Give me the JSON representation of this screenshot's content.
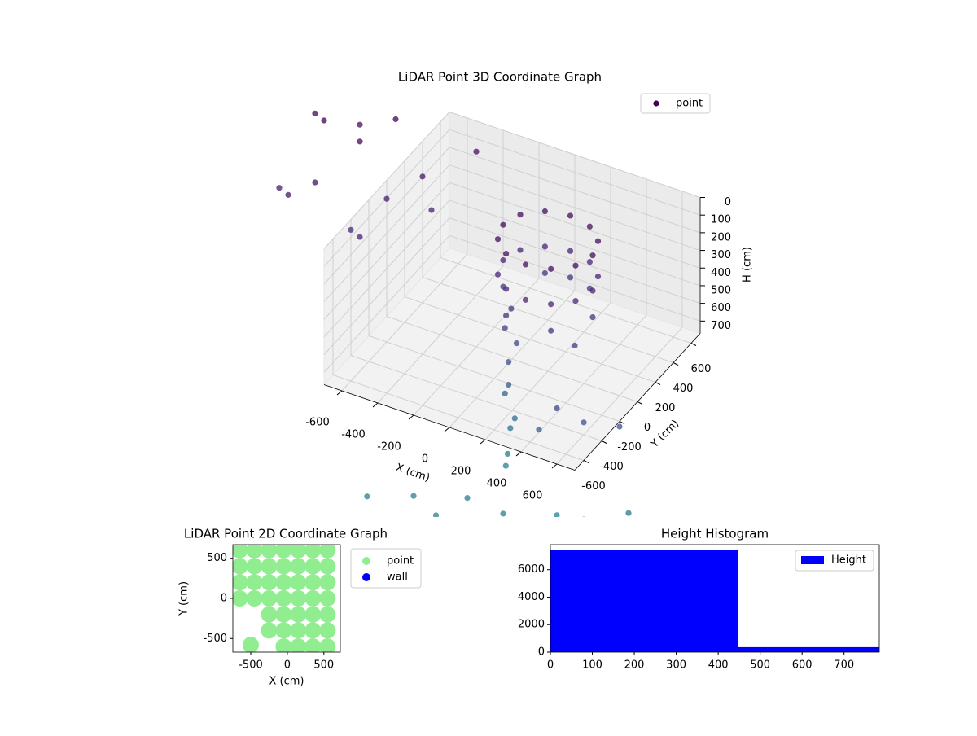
{
  "chart_data": [
    {
      "type": "scatter3d",
      "title": "LiDAR Point 3D Coordinate Graph",
      "xlabel": "X (cm)",
      "ylabel": "Y (cm)",
      "zlabel": "H (cm)",
      "colormap": "viridis",
      "legend": "upper right",
      "z_inverted": true,
      "xlim": [
        -700,
        700
      ],
      "ylim": [
        -700,
        700
      ],
      "zlim": [
        0,
        770
      ],
      "xticks": [
        -600,
        -400,
        -200,
        0,
        200,
        400,
        600
      ],
      "yticks": [
        -600,
        -400,
        -200,
        0,
        200,
        400,
        600
      ],
      "zticks": [
        0,
        100,
        200,
        300,
        400,
        500,
        600,
        700
      ],
      "series": [
        {
          "name": "point",
          "color": "#440154",
          "x": [
            400,
            367,
            275,
            150,
            25,
            -67,
            -100,
            -67,
            25,
            150,
            275,
            367,
            400,
            367,
            275,
            150,
            25,
            -67,
            -100,
            -67,
            25,
            150,
            275,
            367,
            400,
            275,
            150,
            25,
            -100,
            25,
            275,
            20,
            0,
            40,
            10,
            30,
            -20,
            50,
            0,
            20,
            -10,
            -460,
            -250,
            0,
            200,
            400,
            600,
            800,
            -100,
            -1100,
            -1200,
            -1000,
            -900,
            -1100,
            -800,
            -700,
            -600,
            -800,
            -1200,
            -1300,
            -500,
            -900,
            -1300,
            600,
            700,
            500,
            400,
            300
          ],
          "y": [
            100,
            225,
            317,
            350,
            317,
            225,
            100,
            -25,
            -117,
            -150,
            -117,
            -25,
            100,
            225,
            317,
            350,
            317,
            225,
            100,
            -25,
            -117,
            -150,
            -117,
            -25,
            100,
            317,
            350,
            317,
            100,
            -117,
            -117,
            -50,
            -80,
            -30,
            -60,
            -100,
            -40,
            -70,
            -20,
            -90,
            -50,
            -700,
            -600,
            -500,
            -500,
            -300,
            -400,
            -300,
            -650,
            0,
            -100,
            300,
            500,
            500,
            200,
            400,
            300,
            -100,
            300,
            400,
            600,
            0,
            0,
            -400,
            -200,
            -500,
            -100,
            -300
          ],
          "z": [
            100,
            100,
            100,
            100,
            100,
            100,
            100,
            100,
            100,
            100,
            100,
            100,
            300,
            300,
            300,
            300,
            300,
            300,
            300,
            300,
            300,
            300,
            300,
            300,
            450,
            450,
            450,
            450,
            450,
            450,
            450,
            450,
            550,
            650,
            750,
            850,
            950,
            1050,
            1150,
            1250,
            1350,
            1320,
            1300,
            1280,
            1300,
            1350,
            1250,
            1200,
            1330,
            150,
            200,
            50,
            0,
            100,
            250,
            200,
            300,
            300,
            0,
            50,
            100,
            350,
            250,
            700,
            800,
            600,
            500,
            900
          ]
        }
      ]
    },
    {
      "type": "scatter",
      "title": "LiDAR Point 2D Coordinate Graph",
      "xlabel": "X (cm)",
      "ylabel": "Y (cm)",
      "legend": "outside right",
      "xlim": [
        -745,
        725
      ],
      "ylim": [
        -670,
        670
      ],
      "xticks": [
        -500,
        0,
        500
      ],
      "yticks": [
        -500,
        0,
        500
      ],
      "series": [
        {
          "name": "point",
          "color": "#90ee90",
          "x": [
            -650,
            -450,
            -250,
            -50,
            150,
            350,
            550,
            -650,
            -450,
            -250,
            -50,
            150,
            350,
            550,
            -650,
            -450,
            -250,
            -50,
            150,
            350,
            550,
            -650,
            -450,
            -250,
            -50,
            150,
            350,
            550,
            -250,
            -50,
            150,
            350,
            550,
            -250,
            -50,
            150,
            350,
            550,
            -50,
            150,
            350,
            550,
            -500
          ],
          "y": [
            600,
            600,
            600,
            600,
            600,
            600,
            600,
            400,
            400,
            400,
            400,
            400,
            400,
            400,
            200,
            200,
            200,
            200,
            200,
            200,
            200,
            0,
            0,
            0,
            0,
            0,
            0,
            0,
            -200,
            -200,
            -200,
            -200,
            -200,
            -400,
            -400,
            -400,
            -400,
            -400,
            -600,
            -600,
            -600,
            -600,
            -580
          ]
        },
        {
          "name": "wall",
          "color": "#0000ff",
          "x": [],
          "y": []
        }
      ]
    },
    {
      "type": "histogram",
      "title": "Height Histogram",
      "legend": "upper right",
      "xlim": [
        0,
        784
      ],
      "ylim": [
        0,
        7820
      ],
      "xticks": [
        0,
        100,
        200,
        300,
        400,
        500,
        600,
        700
      ],
      "yticks": [
        0,
        2000,
        4000,
        6000
      ],
      "series": [
        {
          "name": "Height",
          "color": "#0000ff",
          "bins": [
            0,
            447,
            784
          ],
          "counts": [
            7450,
            360
          ]
        }
      ]
    }
  ]
}
